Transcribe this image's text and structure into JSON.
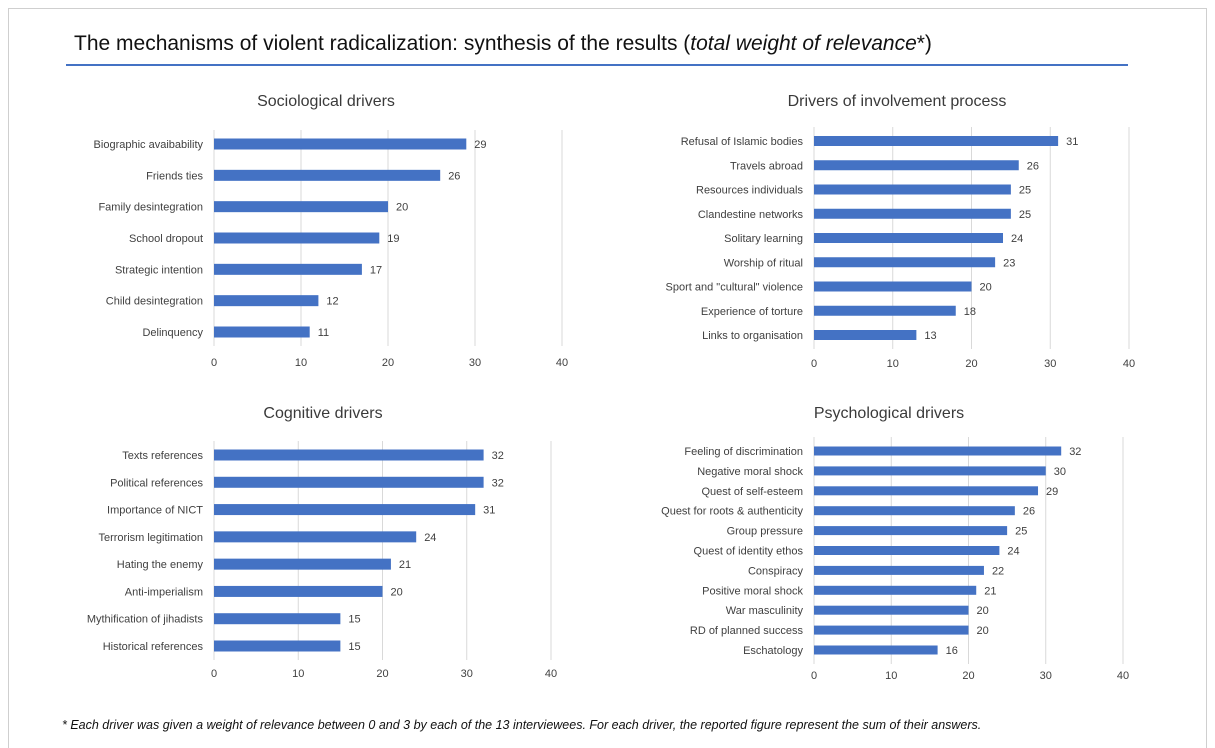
{
  "page": {
    "title_main": "The mechanisms of violent radicalization: synthesis of the results (",
    "title_italic": "total weight of relevance",
    "title_end": "*)",
    "footnote": "* Each driver was given a weight of relevance between 0 and 3 by each of the 13 interviewees. For each driver, the reported figure represent the sum of their answers."
  },
  "colors": {
    "bar": "#4472c4",
    "grid": "#d9d9d9",
    "rule": "#4472c4"
  },
  "chart_data": [
    {
      "type": "bar",
      "orientation": "horizontal",
      "title": "Sociological drivers",
      "categories": [
        "Biographic avaibability",
        "Friends ties",
        "Family desintegration",
        "School dropout",
        "Strategic intention",
        "Child desintegration",
        "Delinquency"
      ],
      "values": [
        29,
        26,
        20,
        19,
        17,
        12,
        11
      ],
      "xlim": [
        0,
        40
      ],
      "xticks": [
        0,
        10,
        20,
        30,
        40
      ],
      "grid": true
    },
    {
      "type": "bar",
      "orientation": "horizontal",
      "title": "Drivers of involvement process",
      "categories": [
        "Refusal of Islamic bodies",
        "Travels abroad",
        "Resources individuals",
        "Clandestine networks",
        "Solitary learning",
        "Worship of ritual",
        "Sport and \"cultural\" violence",
        "Experience of torture",
        "Links to organisation"
      ],
      "values": [
        31,
        26,
        25,
        25,
        24,
        23,
        20,
        18,
        13
      ],
      "xlim": [
        0,
        40
      ],
      "xticks": [
        0,
        10,
        20,
        30,
        40
      ],
      "grid": true
    },
    {
      "type": "bar",
      "orientation": "horizontal",
      "title": "Cognitive drivers",
      "categories": [
        "Texts references",
        "Political references",
        "Importance of NICT",
        "Terrorism legitimation",
        "Hating the enemy",
        "Anti-imperialism",
        "Mythification of jihadists",
        "Historical references"
      ],
      "values": [
        32,
        32,
        31,
        24,
        21,
        20,
        15,
        15
      ],
      "xlim": [
        0,
        40
      ],
      "xticks": [
        0,
        10,
        20,
        30,
        40
      ],
      "grid": true
    },
    {
      "type": "bar",
      "orientation": "horizontal",
      "title": "Psychological drivers",
      "categories": [
        "Feeling of discrimination",
        "Negative moral shock",
        "Quest of self-esteem",
        "Quest for roots & authenticity",
        "Group pressure",
        "Quest of identity ethos",
        "Conspiracy",
        "Positive moral shock",
        "War masculinity",
        "RD of planned success",
        "Eschatology"
      ],
      "values": [
        32,
        30,
        29,
        26,
        25,
        24,
        22,
        21,
        20,
        20,
        16
      ],
      "xlim": [
        0,
        40
      ],
      "xticks": [
        0,
        10,
        20,
        30,
        40
      ],
      "grid": true
    }
  ]
}
